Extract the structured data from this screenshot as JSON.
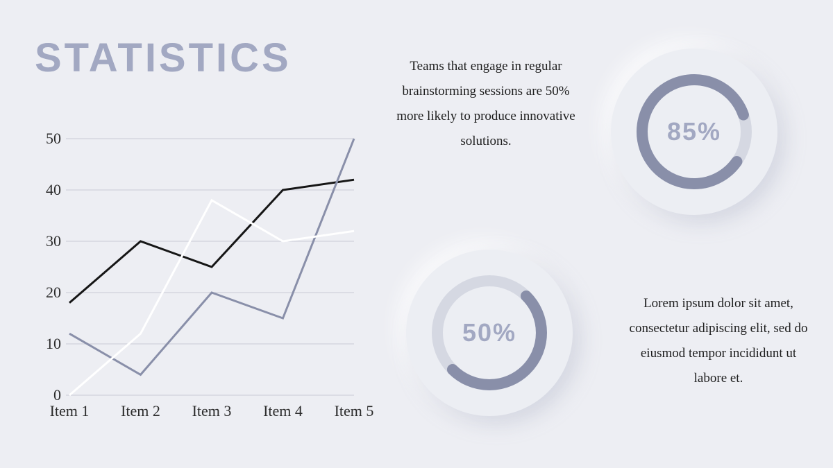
{
  "title": "STATISTICS",
  "background_color": "#edeef3",
  "accent_color": "#a2a8c2",
  "text_color": "#1d1d1d",
  "line_chart": {
    "type": "line",
    "x_labels": [
      "Item 1",
      "Item 2",
      "Item 3",
      "Item 4",
      "Item 5"
    ],
    "y_ticks": [
      0,
      10,
      20,
      30,
      40,
      50
    ],
    "ylim": [
      0,
      50
    ],
    "grid_color": "#c9cbd6",
    "axis_fontsize": 22,
    "line_width": 3,
    "series": [
      {
        "name": "series_black",
        "color": "#161616",
        "values": [
          18,
          30,
          25,
          40,
          42
        ]
      },
      {
        "name": "series_slate",
        "color": "#898fa9",
        "values": [
          12,
          4,
          20,
          15,
          50
        ]
      },
      {
        "name": "series_white",
        "color": "#ffffff",
        "values": [
          0,
          12,
          38,
          30,
          32
        ]
      }
    ]
  },
  "paragraph1": "Teams that engage in regular brainstorming sessions are 50% more likely to produce innovative solutions.",
  "paragraph2": "Lorem ipsum dolor sit amet, consectetur adipiscing elit, sed do eiusmod tempor incididunt ut labore et.",
  "donut1": {
    "label": "85%",
    "percent": 85,
    "fg_color": "#898fa9",
    "bg_color": "#d5d8e2",
    "ring_width": 16,
    "start_angle_deg": 125
  },
  "donut2": {
    "label": "50%",
    "percent": 50,
    "fg_color": "#898fa9",
    "bg_color": "#d5d8e2",
    "ring_width": 16,
    "start_angle_deg": 45
  },
  "neumorphic_shadow": "10px 10px 30px rgba(160,165,190,0.35), -10px -10px 30px rgba(255,255,255,0.9)"
}
